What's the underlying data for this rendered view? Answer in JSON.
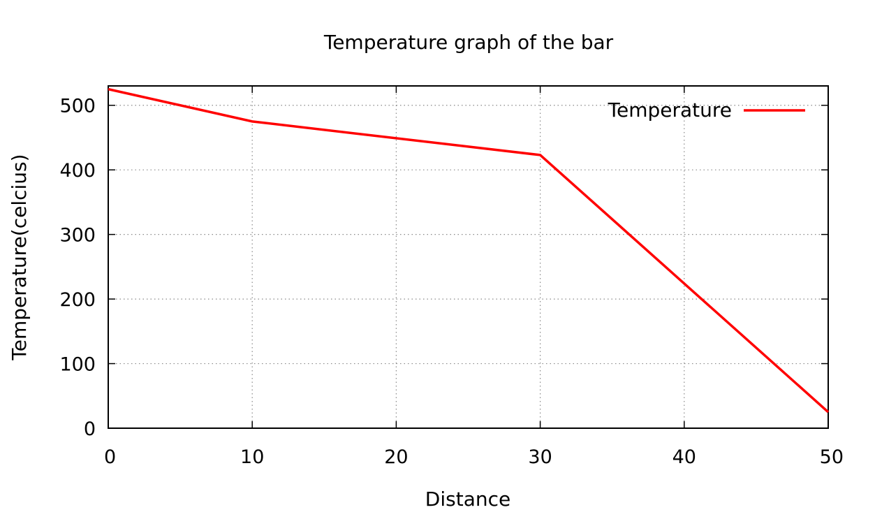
{
  "chart_data": {
    "type": "line",
    "title": "Temperature graph of the bar",
    "xlabel": "Distance",
    "ylabel": "Temperature(celcius)",
    "xlim": [
      0,
      50
    ],
    "ylim": [
      0,
      530
    ],
    "xticks": [
      0,
      10,
      20,
      30,
      40,
      50
    ],
    "yticks": [
      0,
      100,
      200,
      300,
      400,
      500
    ],
    "grid": true,
    "legend_position": "top-right",
    "series": [
      {
        "name": "Temperature",
        "color": "#ff0000",
        "x": [
          0,
          10,
          30,
          40,
          50
        ],
        "y": [
          525,
          475,
          423,
          224,
          25
        ]
      }
    ]
  }
}
